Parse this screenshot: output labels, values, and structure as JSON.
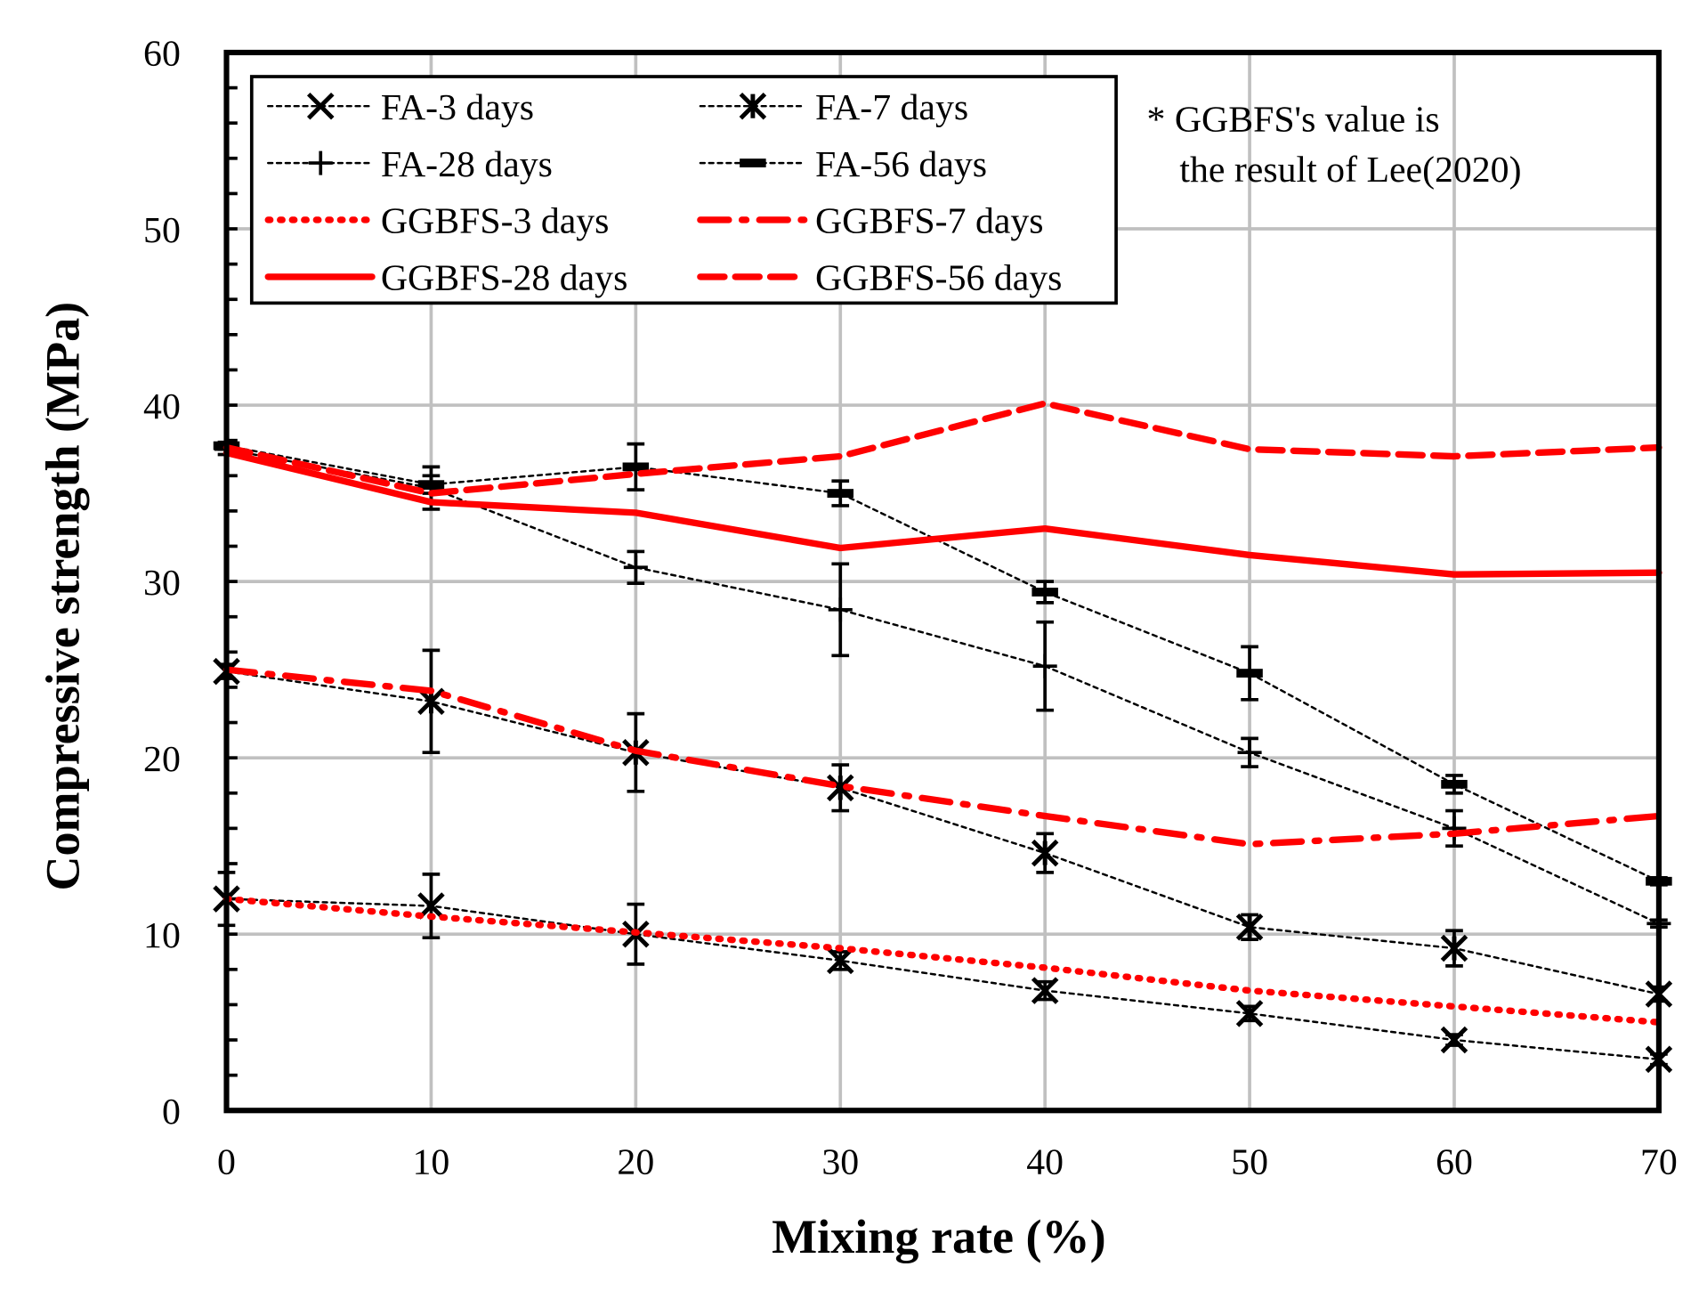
{
  "chart_data": {
    "type": "line",
    "title": "",
    "xlabel": "Mixing rate (%)",
    "ylabel": "Compressive strength (MPa)",
    "xlim": [
      0,
      70
    ],
    "ylim": [
      0,
      60
    ],
    "x_ticks": [
      "0",
      "10",
      "20",
      "30",
      "40",
      "50",
      "60",
      "70"
    ],
    "y_ticks": [
      "0",
      "10",
      "20",
      "30",
      "40",
      "50",
      "60"
    ],
    "grid": true,
    "legend_placement": "top-left",
    "annotation": [
      "* GGBFS's value is",
      "the result of Lee(2020)"
    ],
    "x": [
      0,
      10,
      20,
      30,
      40,
      50,
      60,
      70
    ],
    "series": [
      {
        "name": "FA-3 days",
        "color": "#000000",
        "style": "dotted-marker",
        "marker": "x",
        "values": [
          12.0,
          11.6,
          10.0,
          8.5,
          6.8,
          5.5,
          4.0,
          2.9
        ],
        "error": [
          1.5,
          1.8,
          1.7,
          0.5,
          0.5,
          0.4,
          0.3,
          0.3
        ]
      },
      {
        "name": "FA-7 days",
        "color": "#000000",
        "style": "dotted-marker",
        "marker": "asterisk",
        "values": [
          24.9,
          23.2,
          20.3,
          18.3,
          14.6,
          10.4,
          9.2,
          6.6
        ],
        "error": [
          0.4,
          2.9,
          2.2,
          1.3,
          1.1,
          0.7,
          1.0,
          0.4
        ]
      },
      {
        "name": "FA-28 days",
        "color": "#000000",
        "style": "dotted-marker",
        "marker": "plus",
        "values": [
          37.5,
          35.3,
          30.8,
          28.4,
          25.2,
          20.3,
          16.0,
          10.6
        ],
        "error": [
          0.3,
          1.2,
          0.9,
          2.6,
          2.5,
          0.8,
          1.0,
          0.2
        ]
      },
      {
        "name": "FA-56 days",
        "color": "#000000",
        "style": "dotted-marker",
        "marker": "dash",
        "values": [
          37.7,
          35.5,
          36.5,
          35.0,
          29.4,
          24.8,
          18.5,
          13.0
        ],
        "error": [
          0.2,
          0.5,
          1.3,
          0.7,
          0.6,
          1.5,
          0.5,
          0.2
        ]
      },
      {
        "name": "GGBFS-3 days",
        "color": "#ff0000",
        "style": "dotted",
        "values": [
          12.0,
          11.0,
          10.1,
          9.2,
          8.1,
          6.8,
          5.9,
          5.0
        ]
      },
      {
        "name": "GGBFS-7 days",
        "color": "#ff0000",
        "style": "dash-dot",
        "values": [
          25.0,
          23.8,
          20.4,
          18.4,
          16.7,
          15.1,
          15.7,
          16.7
        ]
      },
      {
        "name": "GGBFS-28 days",
        "color": "#ff0000",
        "style": "solid",
        "values": [
          37.3,
          34.5,
          33.9,
          31.9,
          33.0,
          31.5,
          30.4,
          30.5
        ]
      },
      {
        "name": "GGBFS-56 days",
        "color": "#ff0000",
        "style": "dashed",
        "values": [
          37.6,
          35.0,
          36.1,
          37.1,
          40.1,
          37.5,
          37.1,
          37.6
        ]
      }
    ]
  }
}
